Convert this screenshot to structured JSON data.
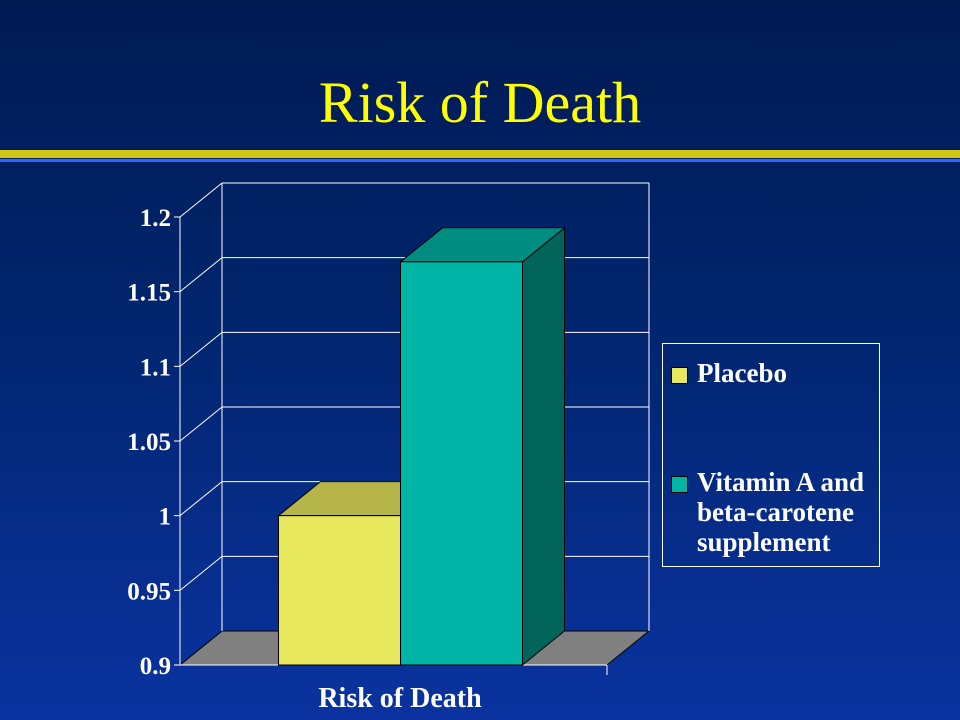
{
  "slide": {
    "title": "Risk of Death"
  },
  "colors": {
    "title": "#ffff00",
    "placebo": "#e8e85f",
    "supplement": "#00b5a5",
    "floor": "#808080"
  },
  "chart_data": {
    "type": "bar",
    "style": "3d",
    "categories": [
      "Risk of Death"
    ],
    "series": [
      {
        "name": "Placebo",
        "values": [
          1.0
        ]
      },
      {
        "name": "Vitamin A and beta-carotene supplement",
        "values": [
          1.17
        ]
      }
    ],
    "xlabel": "",
    "ylabel": "",
    "ylim": [
      0.9,
      1.2
    ],
    "yticks": [
      "0.9",
      "0.95",
      "1",
      "1.05",
      "1.1",
      "1.15",
      "1.2"
    ],
    "grid": true,
    "legend": "right"
  }
}
